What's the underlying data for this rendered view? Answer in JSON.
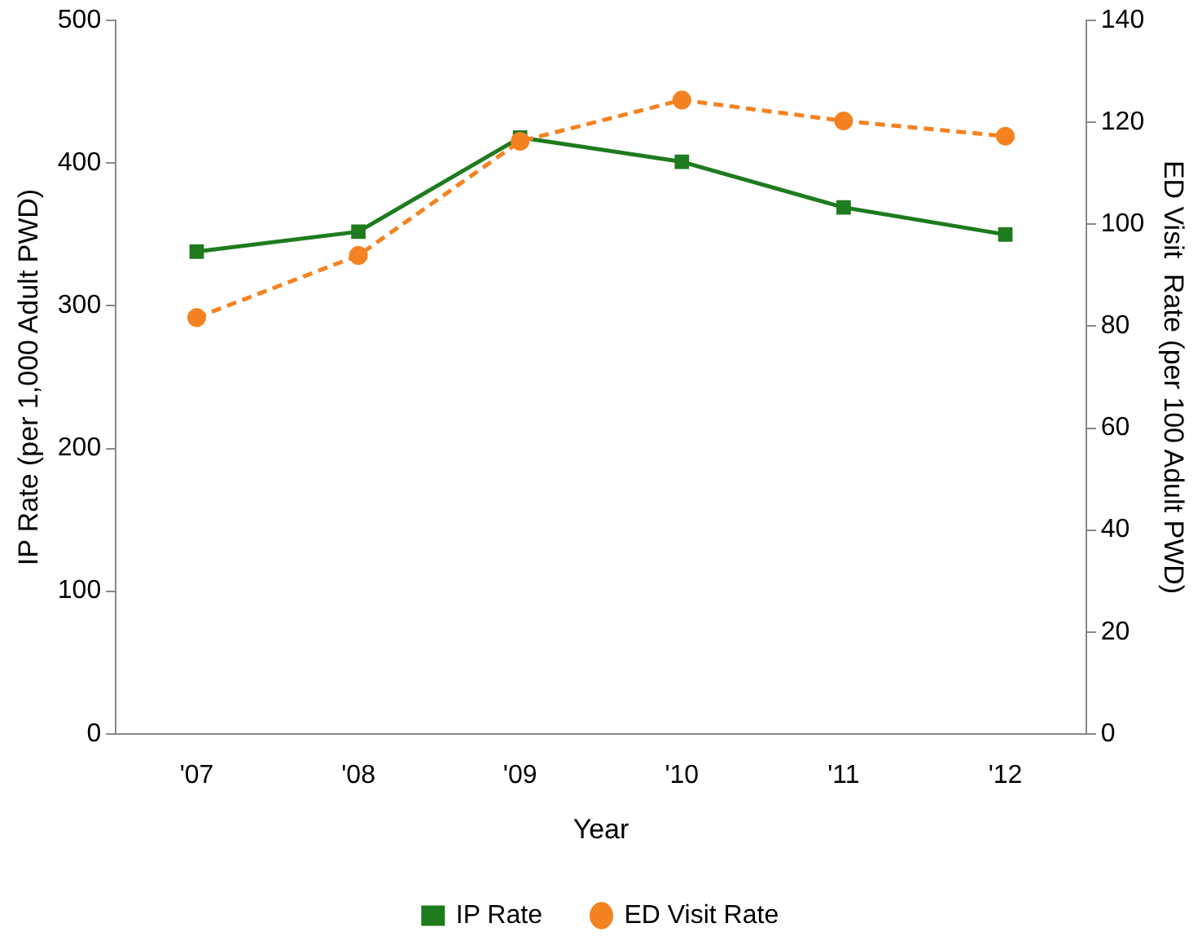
{
  "chart_data": {
    "type": "line",
    "xlabel": "Year",
    "ylabel": "IP Rate (per 1,000 Adult PWD)",
    "y2label": "ED Visit  Rate (per 100 Adult PWD)",
    "categories": [
      "'07",
      "'08",
      "'09",
      "'10",
      "'11",
      "'12"
    ],
    "series": [
      {
        "name": "IP Rate",
        "color": "#1e7b1e",
        "values": [
          338,
          352,
          418,
          401,
          369,
          350
        ],
        "marker": "square",
        "line_style": "solid"
      },
      {
        "name": "ED Visit Rate",
        "color": "#f58220",
        "values": [
          81.7,
          93.9,
          116.3,
          124.4,
          120.3,
          117.3
        ],
        "axis": "y2",
        "marker": "circle",
        "line_style": "dashed"
      }
    ],
    "ylim": [
      0,
      500
    ],
    "yticks": [
      0,
      100,
      200,
      300,
      400,
      500
    ],
    "y2lim": [
      0,
      140
    ],
    "y2ticks": [
      0,
      20,
      40,
      60,
      80,
      100,
      120,
      140
    ],
    "grid": false,
    "legend": "bottom"
  }
}
